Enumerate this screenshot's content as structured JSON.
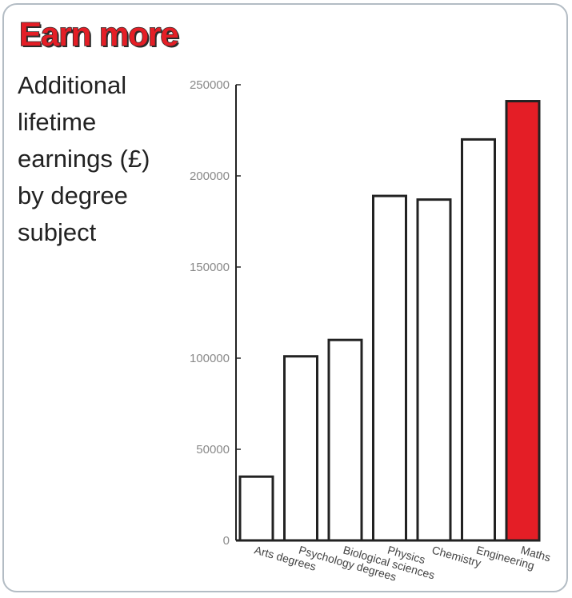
{
  "headline": "Earn more",
  "subtitle_lines": [
    "Additional",
    "lifetime",
    "earnings (£)",
    "by degree",
    "subject"
  ],
  "colors": {
    "highlight": "#e41e26",
    "bar_default": "#ffffff",
    "outline": "#222222",
    "card_border": "#b3bcc4"
  },
  "chart_data": {
    "type": "bar",
    "title": "Earn more",
    "subtitle": "Additional lifetime earnings (£) by degree subject",
    "xlabel": "",
    "ylabel": "",
    "categories": [
      "Arts degrees",
      "Psychology degrees",
      "Biological sciences",
      "Physics",
      "Chemistry",
      "Engineering",
      "Maths"
    ],
    "values": [
      35000,
      101000,
      110000,
      189000,
      187000,
      220000,
      241000
    ],
    "highlighted_category": "Maths",
    "ylim": [
      0,
      250000
    ],
    "yticks": [
      0,
      50000,
      100000,
      150000,
      200000,
      250000
    ],
    "grid": false,
    "legend": "none"
  }
}
